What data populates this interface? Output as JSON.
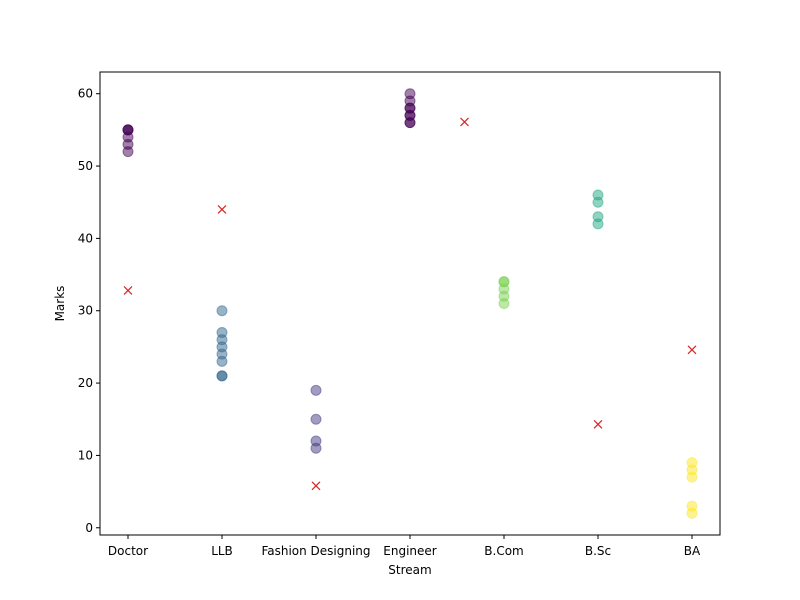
{
  "chart_data": {
    "type": "scatter",
    "xlabel": "Stream",
    "ylabel": "Marks",
    "categories": [
      "Doctor",
      "LLB",
      "Fashion Designing",
      "Engineer",
      "B.Com",
      "B.Sc",
      "BA"
    ],
    "ylim": [
      -1,
      63
    ],
    "yticks": [
      0,
      10,
      20,
      30,
      40,
      50,
      60
    ],
    "grid": false,
    "legend": "none",
    "series": [
      {
        "marker": "circle",
        "opacity": 0.5,
        "points": [
          {
            "x": "Doctor",
            "y": 52,
            "color": "#440154"
          },
          {
            "x": "Doctor",
            "y": 53,
            "color": "#440154"
          },
          {
            "x": "Doctor",
            "y": 54,
            "color": "#440154"
          },
          {
            "x": "Doctor",
            "y": 55,
            "color": "#440154"
          },
          {
            "x": "Doctor",
            "y": 55,
            "color": "#440154"
          },
          {
            "x": "Doctor",
            "y": 55,
            "color": "#440154"
          },
          {
            "x": "LLB",
            "y": 21,
            "color": "#31688e"
          },
          {
            "x": "LLB",
            "y": 21,
            "color": "#31688e"
          },
          {
            "x": "LLB",
            "y": 23,
            "color": "#31688e"
          },
          {
            "x": "LLB",
            "y": 24,
            "color": "#31688e"
          },
          {
            "x": "LLB",
            "y": 25,
            "color": "#31688e"
          },
          {
            "x": "LLB",
            "y": 26,
            "color": "#31688e"
          },
          {
            "x": "LLB",
            "y": 27,
            "color": "#31688e"
          },
          {
            "x": "LLB",
            "y": 30,
            "color": "#31688e"
          },
          {
            "x": "Fashion Designing",
            "y": 11,
            "color": "#443983"
          },
          {
            "x": "Fashion Designing",
            "y": 12,
            "color": "#443983"
          },
          {
            "x": "Fashion Designing",
            "y": 15,
            "color": "#443983"
          },
          {
            "x": "Fashion Designing",
            "y": 19,
            "color": "#443983"
          },
          {
            "x": "Engineer",
            "y": 56,
            "color": "#440154"
          },
          {
            "x": "Engineer",
            "y": 56,
            "color": "#440154"
          },
          {
            "x": "Engineer",
            "y": 57,
            "color": "#440154"
          },
          {
            "x": "Engineer",
            "y": 57,
            "color": "#440154"
          },
          {
            "x": "Engineer",
            "y": 58,
            "color": "#440154"
          },
          {
            "x": "Engineer",
            "y": 58,
            "color": "#440154"
          },
          {
            "x": "Engineer",
            "y": 59,
            "color": "#440154"
          },
          {
            "x": "Engineer",
            "y": 60,
            "color": "#440154"
          },
          {
            "x": "B.Com",
            "y": 31,
            "color": "#7ad151"
          },
          {
            "x": "B.Com",
            "y": 32,
            "color": "#7ad151"
          },
          {
            "x": "B.Com",
            "y": 33,
            "color": "#7ad151"
          },
          {
            "x": "B.Com",
            "y": 34,
            "color": "#7ad151"
          },
          {
            "x": "B.Com",
            "y": 34,
            "color": "#7ad151"
          },
          {
            "x": "B.Sc",
            "y": 42,
            "color": "#22a884"
          },
          {
            "x": "B.Sc",
            "y": 43,
            "color": "#22a884"
          },
          {
            "x": "B.Sc",
            "y": 45,
            "color": "#22a884"
          },
          {
            "x": "B.Sc",
            "y": 46,
            "color": "#22a884"
          },
          {
            "x": "BA",
            "y": 2,
            "color": "#fde725"
          },
          {
            "x": "BA",
            "y": 3,
            "color": "#fde725"
          },
          {
            "x": "BA",
            "y": 7,
            "color": "#fde725"
          },
          {
            "x": "BA",
            "y": 8,
            "color": "#fde725"
          },
          {
            "x": "BA",
            "y": 9,
            "color": "#fde725"
          }
        ]
      },
      {
        "marker": "x",
        "color": "#d62728",
        "points": [
          {
            "x": 0,
            "y": 32.8
          },
          {
            "x": 1,
            "y": 44
          },
          {
            "x": 2,
            "y": 5.8
          },
          {
            "x": 3.58,
            "y": 56.1
          },
          {
            "x": 5,
            "y": 14.3
          },
          {
            "x": 6,
            "y": 24.6
          }
        ]
      }
    ]
  }
}
